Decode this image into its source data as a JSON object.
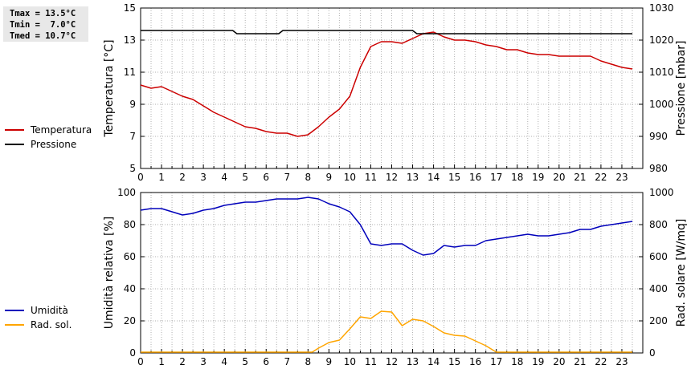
{
  "stats": [
    {
      "label": "Tmax",
      "value": "13.5°C"
    },
    {
      "label": "Tmin",
      "value": "7.0°C"
    },
    {
      "label": "Tmed",
      "value": "10.7°C"
    }
  ],
  "chart_data": [
    {
      "type": "line",
      "ylabel": "Temperatura [°C]",
      "ylabel_right": "Pressione [mbar]",
      "xlim": [
        0,
        24
      ],
      "ylim": [
        5,
        15
      ],
      "ylim_right": [
        980,
        1030
      ],
      "x_ticks": [
        "0",
        "1",
        "2",
        "3",
        "4",
        "5",
        "6",
        "7",
        "8",
        "9",
        "10",
        "11",
        "12",
        "13",
        "14",
        "15",
        "16",
        "17",
        "18",
        "19",
        "20",
        "21",
        "22",
        "23"
      ],
      "y_ticks": [
        "5",
        "7",
        "9",
        "11",
        "13",
        "15"
      ],
      "y_ticks_right": [
        "980",
        "990",
        "1000",
        "1010",
        "1020",
        "1030"
      ],
      "grid": true,
      "legend_position": "left",
      "series": [
        {
          "name": "Temperatura",
          "axis": "left",
          "color": "#cc0000",
          "points": [
            [
              0,
              10.2
            ],
            [
              0.5,
              10.0
            ],
            [
              1,
              10.1
            ],
            [
              1.5,
              9.8
            ],
            [
              2,
              9.5
            ],
            [
              2.5,
              9.3
            ],
            [
              3,
              8.9
            ],
            [
              3.5,
              8.5
            ],
            [
              4,
              8.2
            ],
            [
              4.5,
              7.9
            ],
            [
              5,
              7.6
            ],
            [
              5.5,
              7.5
            ],
            [
              6,
              7.3
            ],
            [
              6.5,
              7.2
            ],
            [
              7,
              7.2
            ],
            [
              7.5,
              7.0
            ],
            [
              8,
              7.1
            ],
            [
              8.5,
              7.6
            ],
            [
              9,
              8.2
            ],
            [
              9.5,
              8.7
            ],
            [
              10,
              9.5
            ],
            [
              10.5,
              11.3
            ],
            [
              11,
              12.6
            ],
            [
              11.5,
              12.9
            ],
            [
              12,
              12.9
            ],
            [
              12.5,
              12.8
            ],
            [
              13,
              13.1
            ],
            [
              13.5,
              13.4
            ],
            [
              14,
              13.5
            ],
            [
              14.5,
              13.2
            ],
            [
              15,
              13.0
            ],
            [
              15.5,
              13.0
            ],
            [
              16,
              12.9
            ],
            [
              16.5,
              12.7
            ],
            [
              17,
              12.6
            ],
            [
              17.5,
              12.4
            ],
            [
              18,
              12.4
            ],
            [
              18.5,
              12.2
            ],
            [
              19,
              12.1
            ],
            [
              19.5,
              12.1
            ],
            [
              20,
              12.0
            ],
            [
              20.5,
              12.0
            ],
            [
              21,
              12.0
            ],
            [
              21.5,
              12.0
            ],
            [
              22,
              11.7
            ],
            [
              22.5,
              11.5
            ],
            [
              23,
              11.3
            ],
            [
              23.5,
              11.2
            ]
          ]
        },
        {
          "name": "Pressione",
          "axis": "right",
          "color": "#000000",
          "points": [
            [
              0,
              1023
            ],
            [
              4.4,
              1023
            ],
            [
              4.6,
              1022
            ],
            [
              6.6,
              1022
            ],
            [
              6.8,
              1023
            ],
            [
              13,
              1023
            ],
            [
              13.2,
              1022
            ],
            [
              23.5,
              1022
            ]
          ]
        }
      ]
    },
    {
      "type": "line",
      "ylabel": "Umidità relativa [%]",
      "ylabel_right": "Rad. solare [W/mq]",
      "xlim": [
        0,
        24
      ],
      "ylim": [
        0,
        100
      ],
      "ylim_right": [
        0,
        1000
      ],
      "x_ticks": [
        "0",
        "1",
        "2",
        "3",
        "4",
        "5",
        "6",
        "7",
        "8",
        "9",
        "10",
        "11",
        "12",
        "13",
        "14",
        "15",
        "16",
        "17",
        "18",
        "19",
        "20",
        "21",
        "22",
        "23"
      ],
      "y_ticks": [
        "0",
        "20",
        "40",
        "60",
        "80",
        "100"
      ],
      "y_ticks_right": [
        "0",
        "200",
        "400",
        "600",
        "800",
        "1000"
      ],
      "grid": true,
      "legend_position": "left",
      "series": [
        {
          "name": "Umidità",
          "axis": "left",
          "color": "#0000bb",
          "points": [
            [
              0,
              89
            ],
            [
              0.5,
              90
            ],
            [
              1,
              90
            ],
            [
              1.5,
              88
            ],
            [
              2,
              86
            ],
            [
              2.5,
              87
            ],
            [
              3,
              89
            ],
            [
              3.5,
              90
            ],
            [
              4,
              92
            ],
            [
              4.5,
              93
            ],
            [
              5,
              94
            ],
            [
              5.5,
              94
            ],
            [
              6,
              95
            ],
            [
              6.5,
              96
            ],
            [
              7,
              96
            ],
            [
              7.5,
              96
            ],
            [
              8,
              97
            ],
            [
              8.5,
              96
            ],
            [
              9,
              93
            ],
            [
              9.5,
              91
            ],
            [
              10,
              88
            ],
            [
              10.5,
              80
            ],
            [
              11,
              68
            ],
            [
              11.5,
              67
            ],
            [
              12,
              68
            ],
            [
              12.5,
              68
            ],
            [
              13,
              64
            ],
            [
              13.5,
              61
            ],
            [
              14,
              62
            ],
            [
              14.5,
              67
            ],
            [
              15,
              66
            ],
            [
              15.5,
              67
            ],
            [
              16,
              67
            ],
            [
              16.5,
              70
            ],
            [
              17,
              71
            ],
            [
              17.5,
              72
            ],
            [
              18,
              73
            ],
            [
              18.5,
              74
            ],
            [
              19,
              73
            ],
            [
              19.5,
              73
            ],
            [
              20,
              74
            ],
            [
              20.5,
              75
            ],
            [
              21,
              77
            ],
            [
              21.5,
              77
            ],
            [
              22,
              79
            ],
            [
              22.5,
              80
            ],
            [
              23,
              81
            ],
            [
              23.5,
              82
            ]
          ]
        },
        {
          "name": "Rad. sol.",
          "axis": "right",
          "color": "#ffa500",
          "points": [
            [
              0,
              5
            ],
            [
              7.9,
              5
            ],
            [
              8.2,
              5
            ],
            [
              8.5,
              30
            ],
            [
              9,
              65
            ],
            [
              9.5,
              80
            ],
            [
              10,
              150
            ],
            [
              10.5,
              225
            ],
            [
              11,
              215
            ],
            [
              11.5,
              260
            ],
            [
              12,
              255
            ],
            [
              12.5,
              170
            ],
            [
              13,
              210
            ],
            [
              13.5,
              200
            ],
            [
              14,
              165
            ],
            [
              14.5,
              125
            ],
            [
              15,
              110
            ],
            [
              15.5,
              105
            ],
            [
              16,
              75
            ],
            [
              16.5,
              45
            ],
            [
              17,
              5
            ],
            [
              23.5,
              5
            ]
          ]
        }
      ]
    }
  ]
}
